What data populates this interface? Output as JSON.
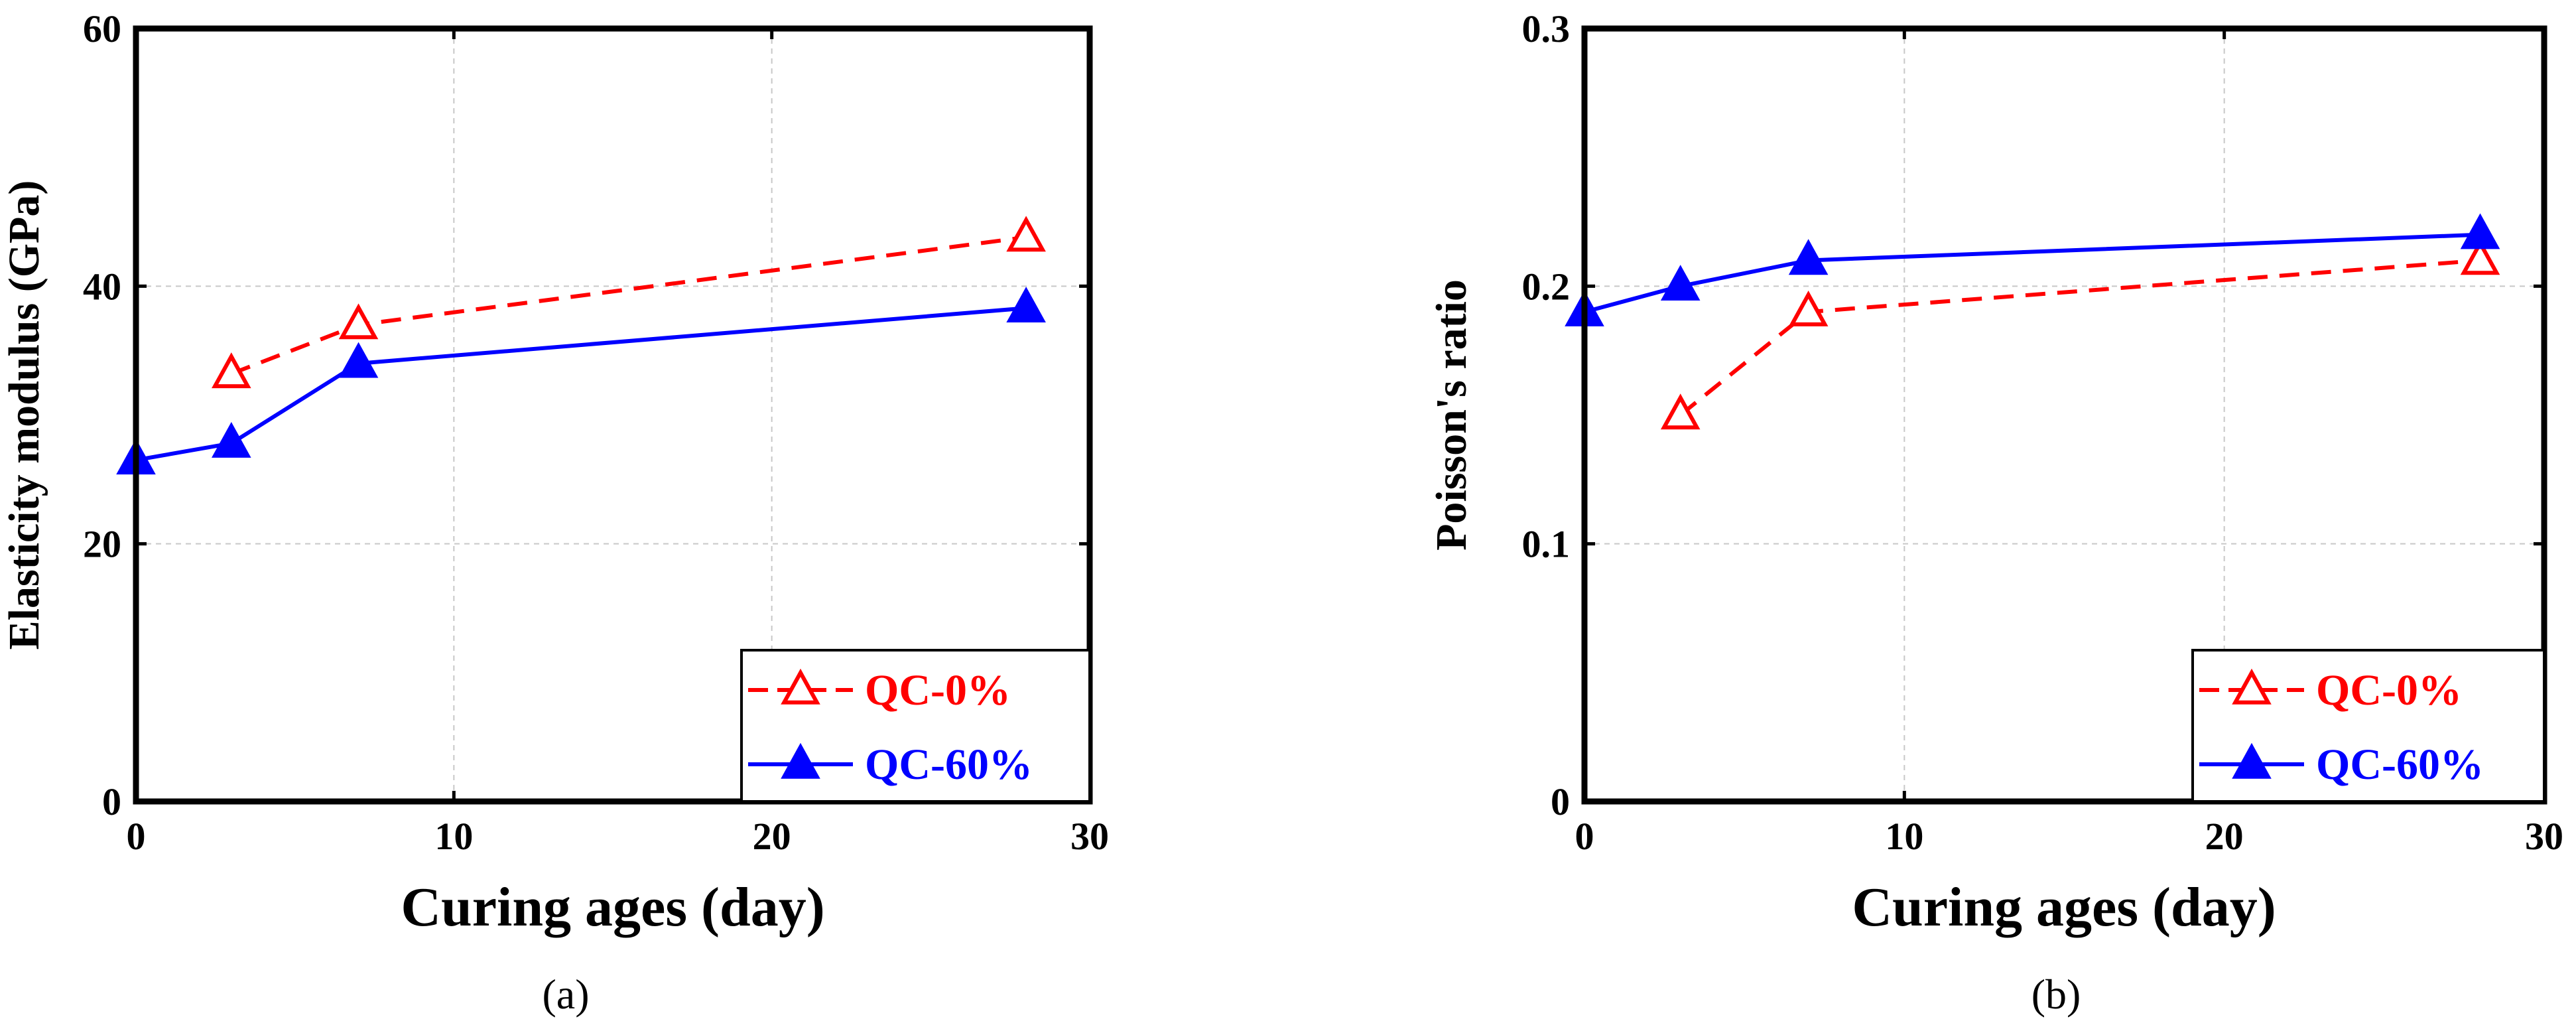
{
  "chart_data": [
    {
      "type": "line",
      "panel": "a",
      "caption": "(a)",
      "xlabel": "Curing ages (day)",
      "ylabel": "Elasticity modulus (GPa)",
      "xlim": [
        0,
        30
      ],
      "ylim": [
        0,
        60
      ],
      "xticks": [
        0,
        10,
        20,
        30
      ],
      "yticks": [
        0,
        20,
        40,
        60
      ],
      "grid": true,
      "legend_position": "bottom-right",
      "series": [
        {
          "name": "QC-0%",
          "color": "#ff0000",
          "dashed": true,
          "marker": "open-triangle",
          "x": [
            3,
            7,
            28
          ],
          "y": [
            33.2,
            37.0,
            43.8
          ]
        },
        {
          "name": "QC-60%",
          "color": "#0000ff",
          "dashed": false,
          "marker": "filled-triangle",
          "x": [
            0,
            3,
            7,
            28
          ],
          "y": [
            26.5,
            27.8,
            34.0,
            38.3
          ]
        }
      ]
    },
    {
      "type": "line",
      "panel": "b",
      "caption": "(b)",
      "xlabel": "Curing ages (day)",
      "ylabel": "Poisson's ratio",
      "xlim": [
        0,
        30
      ],
      "ylim": [
        0,
        0.3
      ],
      "xticks": [
        0,
        10,
        20,
        30
      ],
      "yticks": [
        0,
        0.1,
        0.2,
        0.3
      ],
      "grid": true,
      "legend_position": "bottom-right",
      "series": [
        {
          "name": "QC-0%",
          "color": "#ff0000",
          "dashed": true,
          "marker": "open-triangle",
          "x": [
            3,
            7,
            28
          ],
          "y": [
            0.15,
            0.19,
            0.21
          ]
        },
        {
          "name": "QC-60%",
          "color": "#0000ff",
          "dashed": false,
          "marker": "filled-triangle",
          "x": [
            0,
            3,
            7,
            28
          ],
          "y": [
            0.19,
            0.2,
            0.21,
            0.22
          ]
        }
      ]
    }
  ]
}
